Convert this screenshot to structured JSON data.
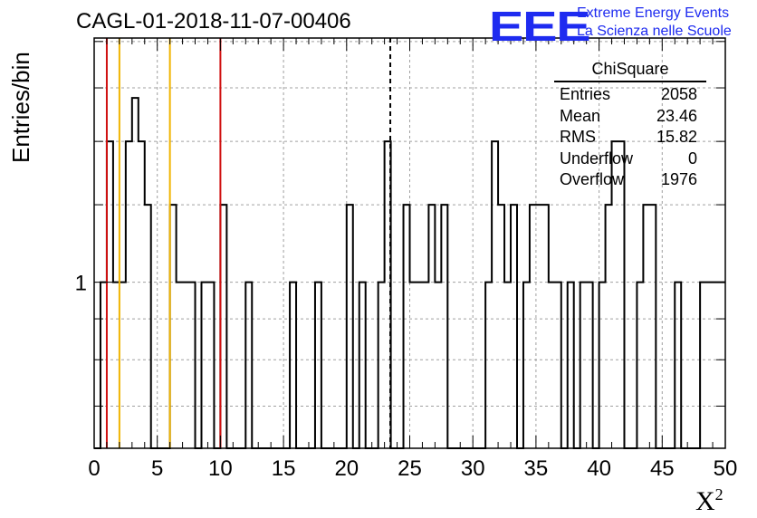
{
  "header": {
    "title": "CAGL-01-2018-11-07-00406",
    "logo": "EEE",
    "logo_line1": "Extreme Energy Events",
    "logo_line2": "La Scienza nelle Scuole"
  },
  "stats_box": {
    "name": "ChiSquare",
    "rows": [
      {
        "label": "Entries",
        "value": "2058"
      },
      {
        "label": "Mean",
        "value": "23.46"
      },
      {
        "label": "RMS",
        "value": "15.82"
      },
      {
        "label": "Underflow",
        "value": "0"
      },
      {
        "label": "Overflow",
        "value": "1976"
      }
    ]
  },
  "colors": {
    "red": "#d01010",
    "orange": "#f0b400",
    "histogram": "#000000",
    "grid": "#a0a0a0",
    "logo": "#1e2bf0"
  },
  "chart_data": {
    "type": "histogram",
    "title": "CAGL-01-2018-11-07-00406",
    "xlabel": "X²",
    "ylabel": "Entries/bin",
    "xlim": [
      0,
      50
    ],
    "ylim": [
      0.62,
      2.02
    ],
    "y_scale": "log",
    "y_tick_labels": [
      "1"
    ],
    "x_tick_labels": [
      "0",
      "5",
      "10",
      "15",
      "20",
      "25",
      "30",
      "35",
      "40",
      "45",
      "50"
    ],
    "grid": true,
    "bin_width": 0.5,
    "bins": [
      {
        "x": 0.5,
        "y": 1
      },
      {
        "x": 1.0,
        "y": 1.5
      },
      {
        "x": 1.5,
        "y": 1
      },
      {
        "x": 2.0,
        "y": 1
      },
      {
        "x": 2.5,
        "y": 1.5
      },
      {
        "x": 3.0,
        "y": 1.7
      },
      {
        "x": 3.5,
        "y": 1.5
      },
      {
        "x": 4.0,
        "y": 1.25
      },
      {
        "x": 6.0,
        "y": 1.25
      },
      {
        "x": 6.5,
        "y": 1
      },
      {
        "x": 7.0,
        "y": 1
      },
      {
        "x": 7.5,
        "y": 1
      },
      {
        "x": 8.5,
        "y": 1
      },
      {
        "x": 9.0,
        "y": 1
      },
      {
        "x": 10.0,
        "y": 1.25
      },
      {
        "x": 12.0,
        "y": 1
      },
      {
        "x": 15.5,
        "y": 1
      },
      {
        "x": 17.5,
        "y": 1
      },
      {
        "x": 20.0,
        "y": 1.25
      },
      {
        "x": 21.0,
        "y": 1
      },
      {
        "x": 22.5,
        "y": 1
      },
      {
        "x": 23.0,
        "y": 1.5
      },
      {
        "x": 24.5,
        "y": 1.25
      },
      {
        "x": 25.0,
        "y": 1
      },
      {
        "x": 25.5,
        "y": 1
      },
      {
        "x": 26.0,
        "y": 1
      },
      {
        "x": 26.5,
        "y": 1.25
      },
      {
        "x": 27.0,
        "y": 1
      },
      {
        "x": 27.5,
        "y": 1.25
      },
      {
        "x": 31.0,
        "y": 1
      },
      {
        "x": 31.5,
        "y": 1.5
      },
      {
        "x": 32.0,
        "y": 1.25
      },
      {
        "x": 32.5,
        "y": 1
      },
      {
        "x": 33.0,
        "y": 1.25
      },
      {
        "x": 34.0,
        "y": 1
      },
      {
        "x": 34.5,
        "y": 1.25
      },
      {
        "x": 35.0,
        "y": 1.25
      },
      {
        "x": 35.5,
        "y": 1.25
      },
      {
        "x": 36.0,
        "y": 1
      },
      {
        "x": 36.5,
        "y": 1
      },
      {
        "x": 37.5,
        "y": 1
      },
      {
        "x": 38.5,
        "y": 1
      },
      {
        "x": 39.0,
        "y": 1
      },
      {
        "x": 40.0,
        "y": 1
      },
      {
        "x": 40.5,
        "y": 1.25
      },
      {
        "x": 41.0,
        "y": 1.5
      },
      {
        "x": 41.5,
        "y": 1.5
      },
      {
        "x": 43.0,
        "y": 1
      },
      {
        "x": 43.5,
        "y": 1.25
      },
      {
        "x": 44.0,
        "y": 1.25
      },
      {
        "x": 46.0,
        "y": 1
      },
      {
        "x": 48.0,
        "y": 1
      },
      {
        "x": 48.5,
        "y": 1
      },
      {
        "x": 49.0,
        "y": 1
      },
      {
        "x": 49.5,
        "y": 1
      }
    ],
    "vertical_lines": [
      {
        "x": 1.0,
        "color": "red",
        "style": "solid"
      },
      {
        "x": 2.0,
        "color": "orange",
        "style": "solid"
      },
      {
        "x": 6.0,
        "color": "orange",
        "style": "solid"
      },
      {
        "x": 10.0,
        "color": "red",
        "style": "solid"
      },
      {
        "x": 23.46,
        "color": "black",
        "style": "dashed"
      }
    ]
  }
}
